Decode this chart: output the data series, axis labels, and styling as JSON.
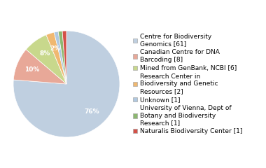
{
  "labels": [
    "Centre for Biodiversity\nGenomics [61]",
    "Canadian Centre for DNA\nBarcoding [8]",
    "Mined from GenBank, NCBI [6]",
    "Research Center in\nBiodiversity and Genetic\nResources [2]",
    "Unknown [1]",
    "University of Vienna, Dept of\nBotany and Biodiversity\nResearch [1]",
    "Naturalis Biodiversity Center [1]"
  ],
  "values": [
    61,
    8,
    6,
    2,
    1,
    1,
    1
  ],
  "colors": [
    "#bfcfe0",
    "#e8a898",
    "#c8d88c",
    "#f0b870",
    "#b0c8e0",
    "#8cb870",
    "#d45048"
  ],
  "legend_fontsize": 6.5,
  "autopct_fontsize": 6.5,
  "background_color": "#ffffff",
  "startangle": 90
}
